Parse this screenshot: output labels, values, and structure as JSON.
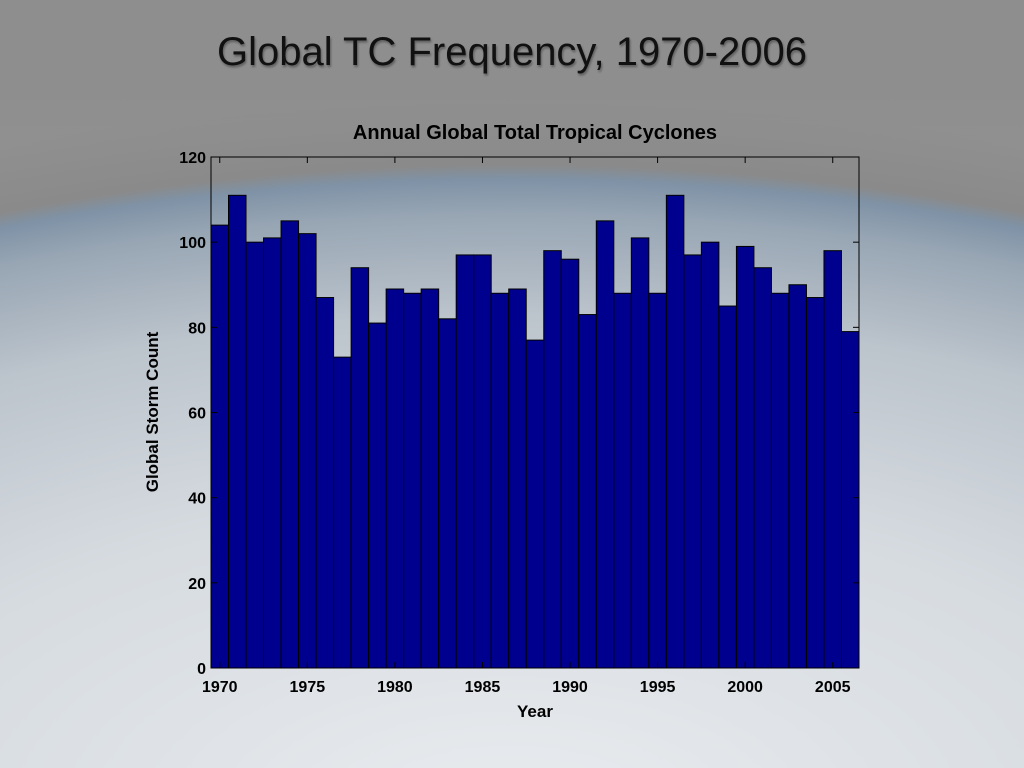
{
  "slide": {
    "title": "Global TC Frequency, 1970-2006"
  },
  "chart_data": {
    "type": "bar",
    "title": "Annual Global Total Tropical Cyclones",
    "xlabel": "Year",
    "ylabel": "Global Storm Count",
    "ylim": [
      0,
      120
    ],
    "xlim": [
      1969.5,
      2006.5
    ],
    "yticks": [
      0,
      20,
      40,
      60,
      80,
      100,
      120
    ],
    "xticks": [
      1970,
      1975,
      1980,
      1985,
      1990,
      1995,
      2000,
      2005
    ],
    "grid": false,
    "bar_color": "#00008f",
    "x": [
      1970,
      1971,
      1972,
      1973,
      1974,
      1975,
      1976,
      1977,
      1978,
      1979,
      1980,
      1981,
      1982,
      1983,
      1984,
      1985,
      1986,
      1987,
      1988,
      1989,
      1990,
      1991,
      1992,
      1993,
      1994,
      1995,
      1996,
      1997,
      1998,
      1999,
      2000,
      2001,
      2002,
      2003,
      2004,
      2005,
      2006
    ],
    "values": [
      104,
      111,
      100,
      101,
      105,
      102,
      87,
      73,
      94,
      81,
      89,
      88,
      89,
      82,
      97,
      97,
      88,
      89,
      77,
      98,
      96,
      83,
      105,
      88,
      101,
      88,
      111,
      97,
      100,
      85,
      99,
      94,
      88,
      90,
      87,
      98,
      79
    ]
  }
}
